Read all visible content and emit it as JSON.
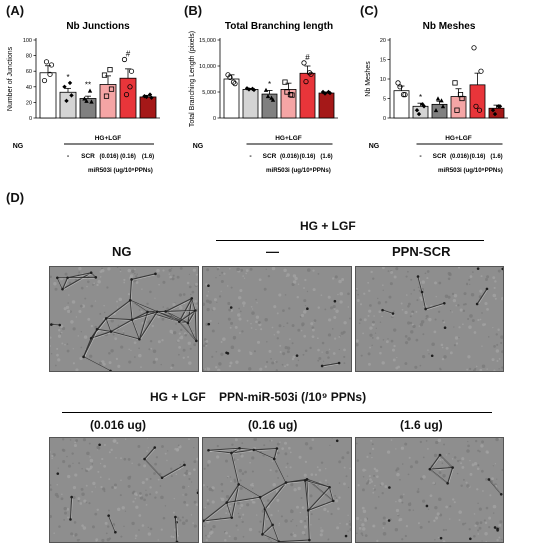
{
  "figure": {
    "panel_labels": [
      "(A)",
      "(B)",
      "(C)",
      "(D)"
    ]
  },
  "chart_data": [
    {
      "type": "bar",
      "title": "Nb Junctions",
      "ylabel": "Number of Junctions",
      "ylim": [
        0,
        100
      ],
      "yticks": [
        "0",
        "20",
        "40",
        "60",
        "80",
        "100"
      ],
      "categories": [
        "NG",
        "HG+LGF",
        "SCR",
        "0.016",
        "0.16",
        "1.6"
      ],
      "values": [
        58,
        33,
        25,
        43,
        51,
        27
      ],
      "errors": [
        9,
        5,
        3,
        11,
        12,
        2
      ],
      "markers": [
        "",
        "*",
        "**",
        "",
        "#",
        ""
      ],
      "points": [
        [
          48,
          68,
          72,
          56
        ],
        [
          40,
          29,
          22,
          45
        ],
        [
          25,
          21,
          22,
          35
        ],
        [
          55,
          37,
          28,
          62
        ],
        [
          75,
          60,
          30,
          40
        ],
        [
          28,
          26,
          27,
          30
        ]
      ],
      "group_caption": "HG+LGF",
      "x_caption_ng": "NG",
      "x_caption_dash": "-",
      "x_caption_scr": "SCR",
      "x_caption_doses": [
        "(0.016)",
        "(0.16)",
        "(1.6)"
      ],
      "x_caption_mir": "miR503i (ug/10⁹PPNs)"
    },
    {
      "type": "bar",
      "title": "Total Branching length",
      "ylabel": "Total Branching Length (pixels)",
      "ylim": [
        0,
        15000
      ],
      "yticks": [
        "0",
        "5,000",
        "10,000",
        "15,000"
      ],
      "categories": [
        "NG",
        "HG+LGF",
        "SCR",
        "0.016",
        "0.16",
        "1.6"
      ],
      "values": [
        7500,
        5500,
        4600,
        5500,
        8600,
        4800
      ],
      "errors": [
        800,
        200,
        700,
        1200,
        1400,
        200
      ],
      "markers": [
        "",
        "",
        "*",
        "",
        "#",
        ""
      ],
      "points": [
        [
          8300,
          6600,
          7800,
          6900
        ],
        [
          5700,
          5400,
          5500,
          5600
        ],
        [
          5400,
          3500,
          4200,
          3900
        ],
        [
          6900,
          4400,
          5000,
          4500
        ],
        [
          10600,
          8400,
          7000,
          8700
        ],
        [
          5000,
          4800,
          4700,
          5000
        ]
      ],
      "group_caption": "HG+LGF",
      "x_caption_ng": "NG",
      "x_caption_dash": "-",
      "x_caption_scr": "SCR",
      "x_caption_doses": [
        "(0.016)",
        "(0.16)",
        "(1.6)"
      ],
      "x_caption_mir": "miR503i (ug/10⁹PPNs)"
    },
    {
      "type": "bar",
      "title": "Nb Meshes",
      "ylabel": "Nb Meshes",
      "ylim": [
        0,
        20
      ],
      "yticks": [
        "0",
        "5",
        "10",
        "15",
        "20"
      ],
      "categories": [
        "NG",
        "HG+LGF",
        "SCR",
        "0.016",
        "0.16",
        "1.6"
      ],
      "values": [
        7,
        3,
        3.5,
        5.5,
        8.5,
        2.5
      ],
      "errors": [
        1.2,
        0.8,
        0.8,
        2,
        3,
        0.8
      ],
      "markers": [
        "",
        "*",
        "",
        "",
        "",
        ""
      ],
      "points": [
        [
          9,
          6,
          8,
          6
        ],
        [
          2,
          3,
          1,
          3.5
        ],
        [
          2,
          3,
          5,
          4.5
        ],
        [
          9,
          5,
          2,
          6
        ],
        [
          18,
          12,
          3,
          2
        ],
        [
          2,
          3,
          1,
          3
        ]
      ],
      "group_caption": "HG+LGF",
      "x_caption_ng": "NG",
      "x_caption_dash": "-",
      "x_caption_scr": "SCR",
      "x_caption_doses": [
        "(0.016)",
        "(0.16)",
        "(1.6)"
      ],
      "x_caption_mir": "miR503i (ug/10⁹PPNs)"
    }
  ],
  "bar_colors": [
    "#ffffff",
    "#d4d4d4",
    "#808080",
    "#f5a5a5",
    "#e8353a",
    "#a51818"
  ],
  "point_markers": [
    "circle",
    "diamond",
    "triangle",
    "square",
    "circle",
    "diamond"
  ],
  "panel_d": {
    "top_header": "HG + LGF",
    "labels_top": [
      "NG",
      "—",
      "PPN-SCR"
    ],
    "bottom_header": "HG + LGF    PPN-miR-503i (/10⁹ PPNs)",
    "labels_bottom": [
      "(0.016 ug)",
      "(0.16 ug)",
      "(1.6 ug)"
    ]
  }
}
